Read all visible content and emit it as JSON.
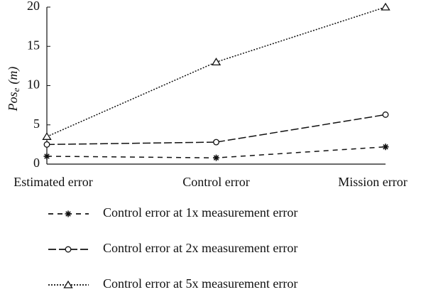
{
  "chart_data": {
    "type": "line",
    "ylabel": [
      "Pos",
      "e",
      "(m)"
    ],
    "categories": [
      "Estimated error",
      "Control error",
      "Mission error"
    ],
    "series": [
      {
        "name": "Control error at 1x measurement error",
        "color": "#111111",
        "dash": "7,6",
        "marker": "star",
        "values": [
          1.0,
          0.8,
          2.2
        ]
      },
      {
        "name": "Control error at 2x measurement error",
        "color": "#111111",
        "dash": "11,4",
        "marker": "circle",
        "values": [
          2.5,
          2.8,
          6.3
        ]
      },
      {
        "name": "Control error at 5x measurement error",
        "color": "#111111",
        "dash": "2,2",
        "marker": "triangle",
        "values": [
          3.5,
          13,
          20
        ]
      }
    ],
    "ylim": [
      0,
      20
    ],
    "yticks": [
      0,
      5,
      10,
      15,
      20
    ],
    "grid": false
  }
}
